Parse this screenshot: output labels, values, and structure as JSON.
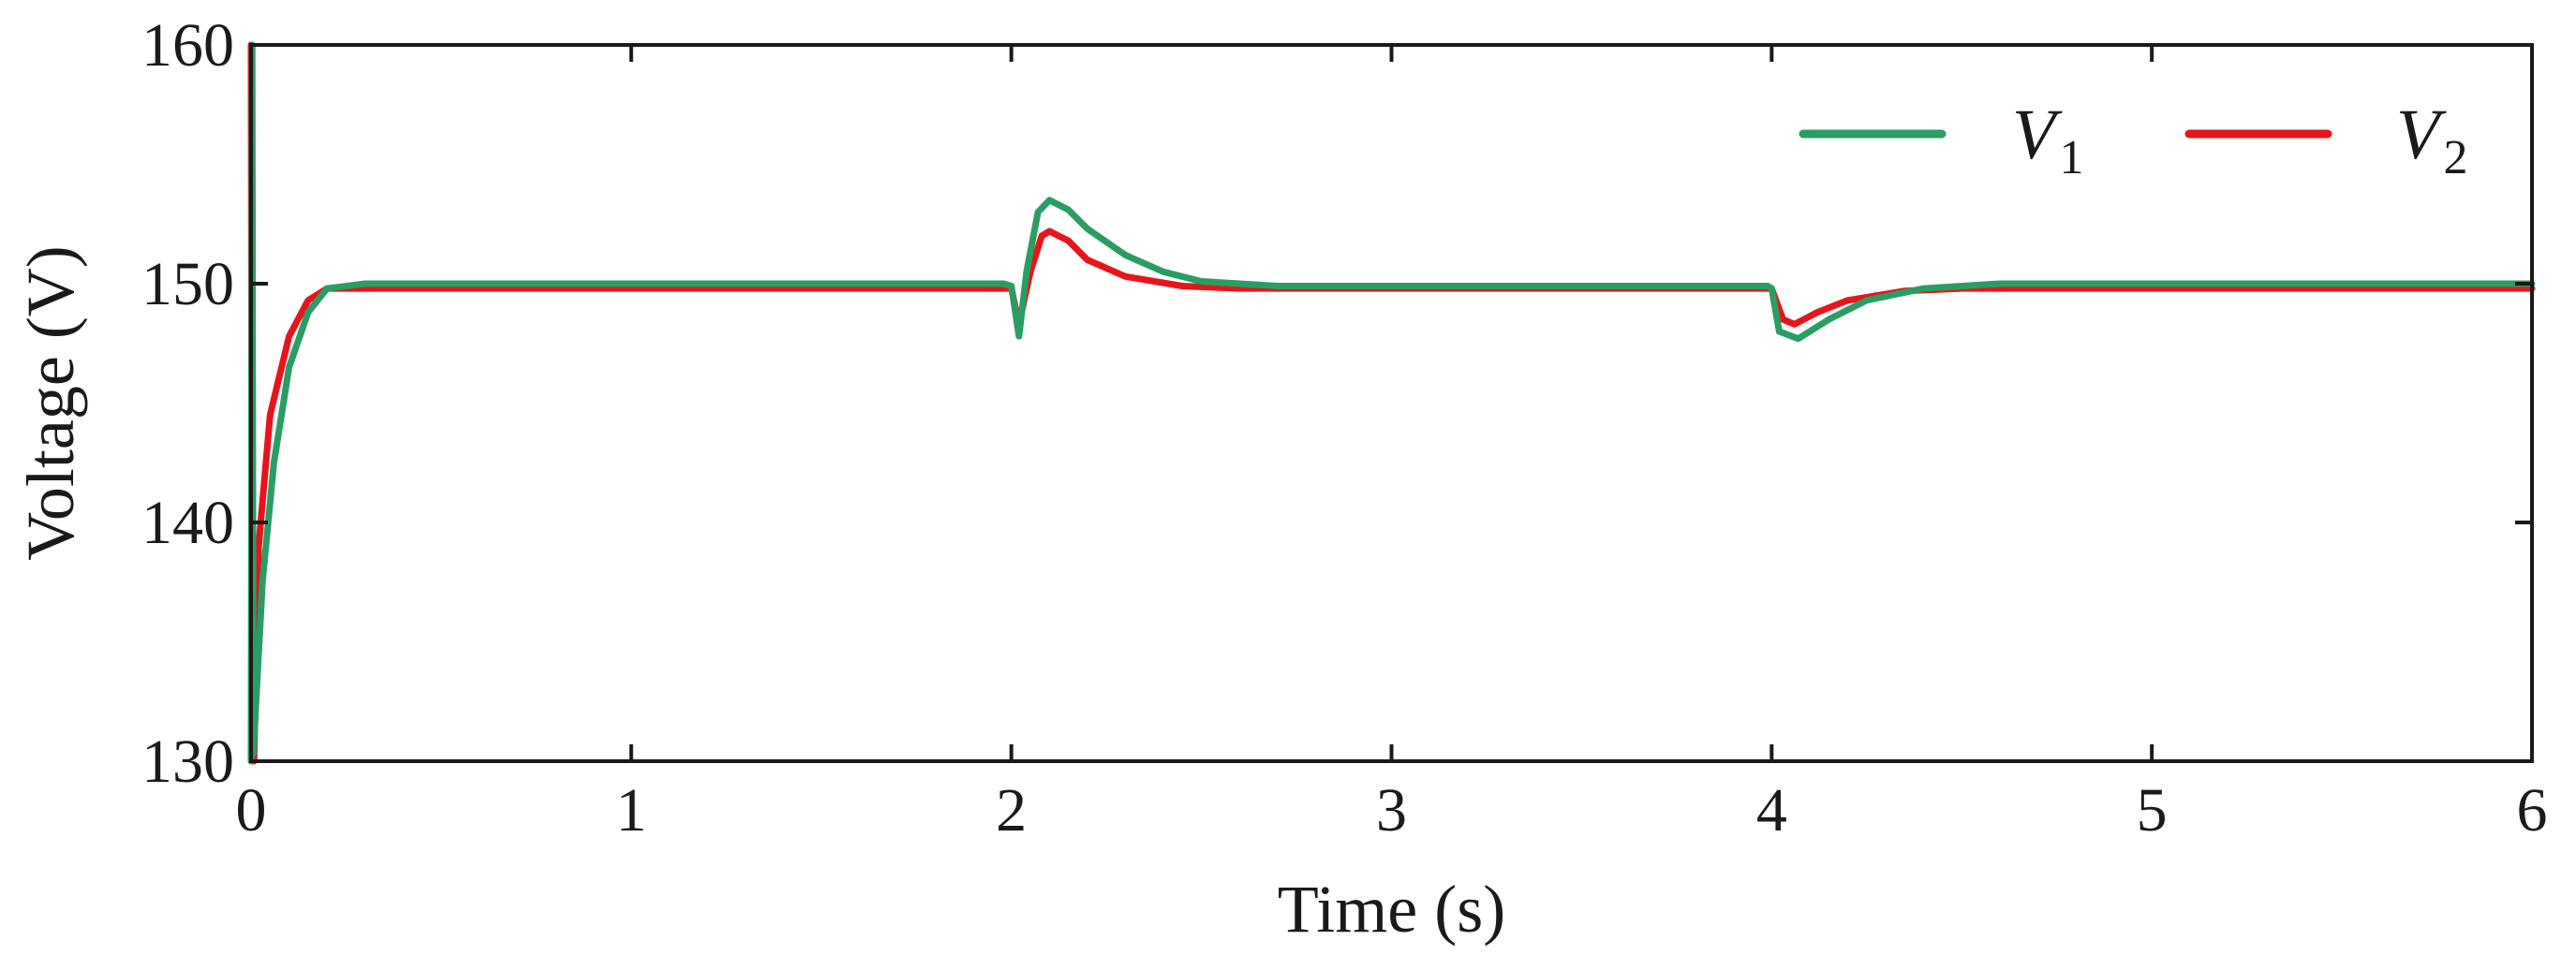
{
  "chart_data": {
    "type": "line",
    "xlabel": "Time (s)",
    "ylabel": "Voltage (V)",
    "xlim": [
      0,
      6
    ],
    "ylim": [
      130,
      160
    ],
    "xticks": [
      0,
      1,
      2,
      3,
      4,
      5,
      6
    ],
    "yticks": [
      130,
      140,
      150,
      160
    ],
    "grid": false,
    "legend_position": "top-right",
    "series": [
      {
        "name": "V1",
        "label_main": "V",
        "label_sub": "1",
        "color": "#2a9d64",
        "points": [
          [
            0.0,
            130.0
          ],
          [
            0.003,
            160.0
          ],
          [
            0.006,
            130.3
          ],
          [
            0.03,
            137.5
          ],
          [
            0.06,
            142.5
          ],
          [
            0.1,
            146.5
          ],
          [
            0.15,
            148.8
          ],
          [
            0.2,
            149.8
          ],
          [
            0.3,
            150.0
          ],
          [
            1.0,
            150.0
          ],
          [
            1.98,
            150.0
          ],
          [
            2.0,
            149.9
          ],
          [
            2.02,
            147.8
          ],
          [
            2.04,
            150.5
          ],
          [
            2.07,
            153.0
          ],
          [
            2.1,
            153.5
          ],
          [
            2.15,
            153.1
          ],
          [
            2.2,
            152.3
          ],
          [
            2.3,
            151.2
          ],
          [
            2.4,
            150.5
          ],
          [
            2.5,
            150.1
          ],
          [
            2.7,
            149.9
          ],
          [
            3.0,
            149.9
          ],
          [
            3.5,
            149.9
          ],
          [
            3.99,
            149.9
          ],
          [
            4.0,
            149.8
          ],
          [
            4.02,
            148.0
          ],
          [
            4.07,
            147.7
          ],
          [
            4.15,
            148.5
          ],
          [
            4.25,
            149.3
          ],
          [
            4.4,
            149.8
          ],
          [
            4.6,
            150.0
          ],
          [
            5.0,
            150.0
          ],
          [
            6.0,
            150.0
          ]
        ]
      },
      {
        "name": "V2",
        "label_main": "V",
        "label_sub": "2",
        "color": "#e8141c",
        "points": [
          [
            0.0,
            160.0
          ],
          [
            0.003,
            130.0
          ],
          [
            0.008,
            130.0
          ],
          [
            0.02,
            139.0
          ],
          [
            0.05,
            144.5
          ],
          [
            0.1,
            147.8
          ],
          [
            0.15,
            149.3
          ],
          [
            0.2,
            149.8
          ],
          [
            0.3,
            149.8
          ],
          [
            1.0,
            149.8
          ],
          [
            1.98,
            149.8
          ],
          [
            2.0,
            149.8
          ],
          [
            2.02,
            148.3
          ],
          [
            2.05,
            150.5
          ],
          [
            2.08,
            152.0
          ],
          [
            2.1,
            152.2
          ],
          [
            2.15,
            151.8
          ],
          [
            2.2,
            151.0
          ],
          [
            2.3,
            150.3
          ],
          [
            2.45,
            149.9
          ],
          [
            2.6,
            149.8
          ],
          [
            3.0,
            149.8
          ],
          [
            3.99,
            149.8
          ],
          [
            4.0,
            149.8
          ],
          [
            4.03,
            148.5
          ],
          [
            4.06,
            148.3
          ],
          [
            4.12,
            148.8
          ],
          [
            4.2,
            149.3
          ],
          [
            4.35,
            149.7
          ],
          [
            4.5,
            149.8
          ],
          [
            5.0,
            149.8
          ],
          [
            6.0,
            149.8
          ]
        ]
      }
    ]
  }
}
